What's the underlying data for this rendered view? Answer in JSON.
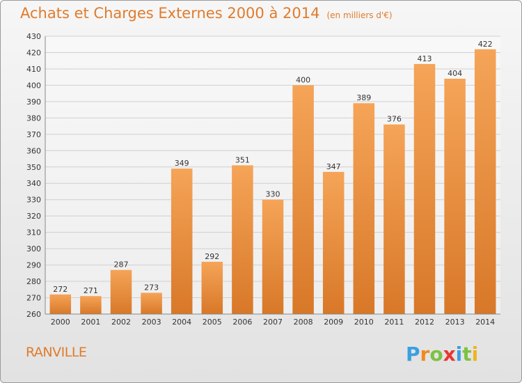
{
  "header": {
    "title": "Achats et Charges Externes 2000 à 2014",
    "subtitle": "(en milliers d'€)"
  },
  "footer": {
    "place": "RANVILLE",
    "logo_text": "Proxiti"
  },
  "colors": {
    "accent": "#e07b2c",
    "bar_top": "#f5a458",
    "bar_bottom": "#d87828",
    "grid": "#cfcfcf"
  },
  "chart_data": {
    "type": "bar",
    "title": "Achats et Charges Externes 2000 à 2014",
    "subtitle": "(en milliers d'€)",
    "categories": [
      "2000",
      "2001",
      "2002",
      "2003",
      "2004",
      "2005",
      "2006",
      "2007",
      "2008",
      "2009",
      "2010",
      "2011",
      "2012",
      "2013",
      "2014"
    ],
    "values": [
      272,
      271,
      287,
      273,
      349,
      292,
      351,
      330,
      400,
      347,
      389,
      376,
      413,
      404,
      422
    ],
    "ylim": [
      260,
      430
    ],
    "yticks": [
      260,
      270,
      280,
      290,
      300,
      310,
      320,
      330,
      340,
      350,
      360,
      370,
      380,
      390,
      400,
      410,
      420,
      430
    ],
    "grid": true,
    "legend": "none",
    "data_labels": true
  }
}
